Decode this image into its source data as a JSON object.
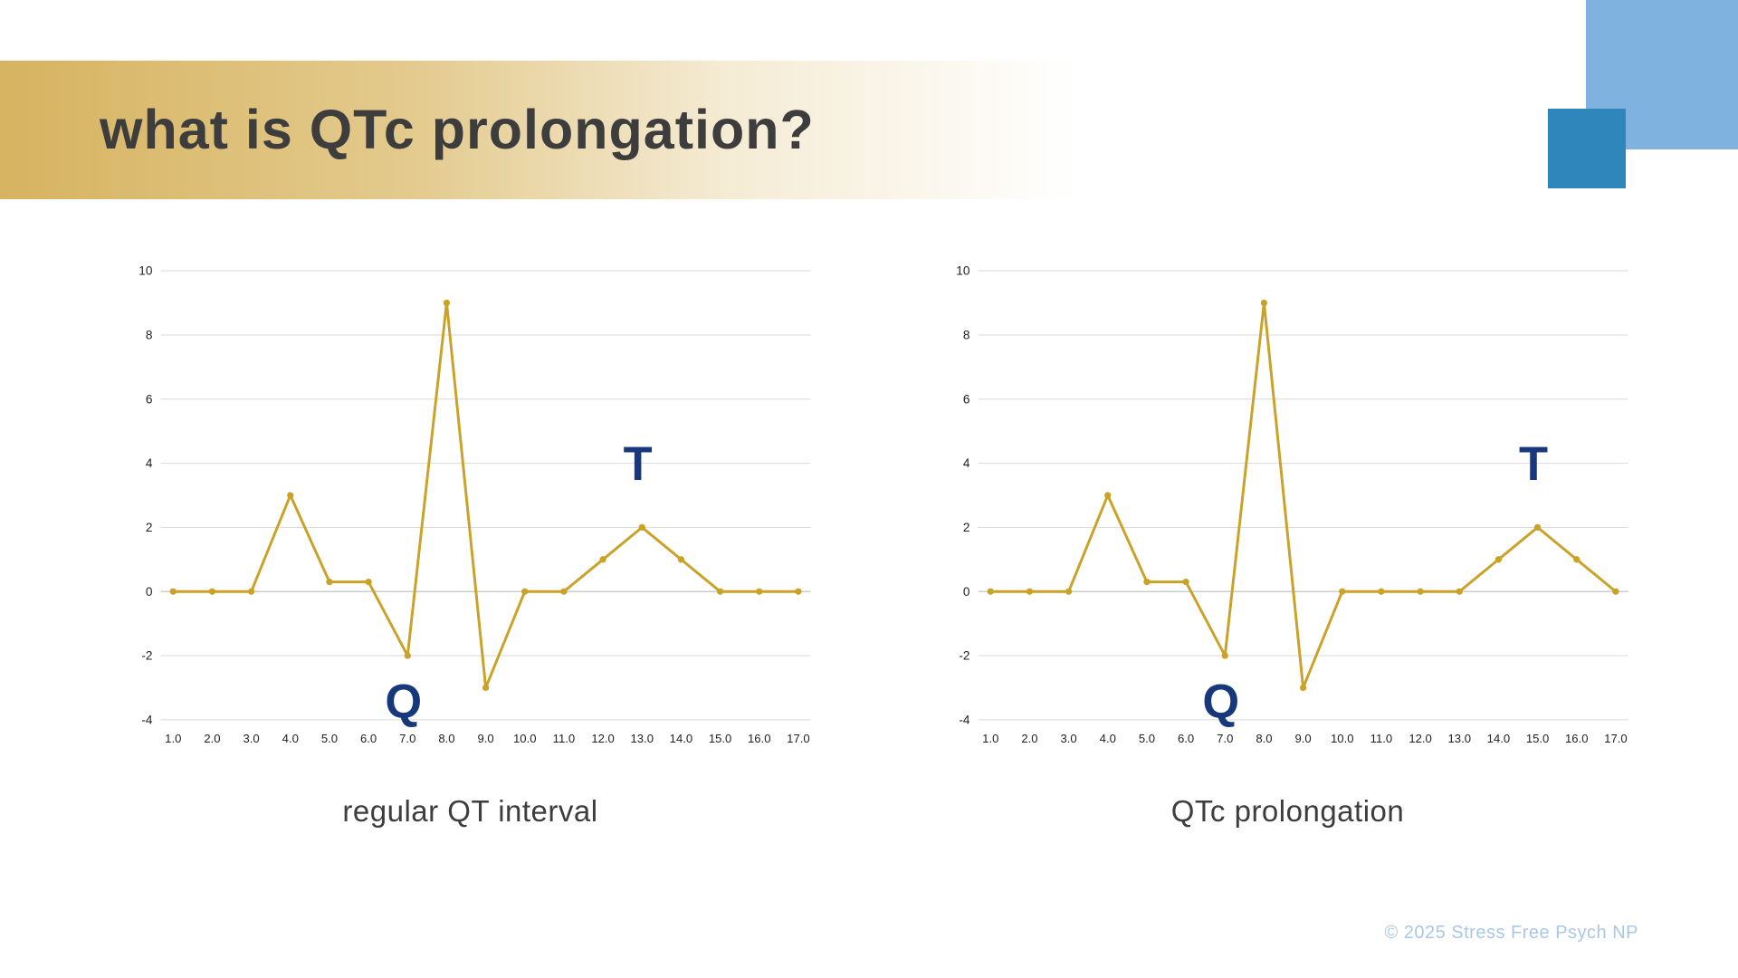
{
  "slide": {
    "title": "what is QTc prolongation?",
    "copyright": "© 2025 Stress Free Psych NP"
  },
  "colors": {
    "header_gradient_start": "#d6b360",
    "header_gradient_end": "#ffffff",
    "square_light_blue": "#7fb2df",
    "square_dark_blue": "#2e86ba",
    "grid_line": "#dedede",
    "zero_line": "#bdbdbd",
    "tick_text": "#222222",
    "annotation_color": "#17397b",
    "caption_text": "#3d3d3d",
    "copyright_text": "#a9c7e9",
    "ecg_gold": "#c9a227"
  },
  "chart_data": [
    {
      "type": "line",
      "title": "regular QT interval",
      "x": [
        1,
        2,
        3,
        4,
        5,
        6,
        7,
        8,
        9,
        10,
        11,
        12,
        13,
        14,
        15,
        16,
        17
      ],
      "x_tick_labels": [
        "1.0",
        "2.0",
        "3.0",
        "4.0",
        "5.0",
        "6.0",
        "7.0",
        "8.0",
        "9.0",
        "10.0",
        "11.0",
        "12.0",
        "13.0",
        "14.0",
        "15.0",
        "16.0",
        "17.0"
      ],
      "values": [
        0,
        0,
        0,
        3,
        0.3,
        0.3,
        -2,
        9,
        -3,
        0,
        0,
        1,
        2,
        1,
        0,
        0,
        0
      ],
      "ylim": [
        -4,
        10
      ],
      "yticks": [
        -4,
        -2,
        0,
        2,
        4,
        6,
        8,
        10
      ],
      "grid": true,
      "legend": "none",
      "line_color": "#c9a227",
      "annotations": [
        {
          "label": "Q",
          "x": 7,
          "y": -2,
          "position": "below"
        },
        {
          "label": "T",
          "x": 13,
          "y": 2,
          "position": "above"
        }
      ]
    },
    {
      "type": "line",
      "title": "QTc prolongation",
      "x": [
        1,
        2,
        3,
        4,
        5,
        6,
        7,
        8,
        9,
        10,
        11,
        12,
        13,
        14,
        15,
        16,
        17
      ],
      "x_tick_labels": [
        "1.0",
        "2.0",
        "3.0",
        "4.0",
        "5.0",
        "6.0",
        "7.0",
        "8.0",
        "9.0",
        "10.0",
        "11.0",
        "12.0",
        "13.0",
        "14.0",
        "15.0",
        "16.0",
        "17.0"
      ],
      "values": [
        0,
        0,
        0,
        3,
        0.3,
        0.3,
        -2,
        9,
        -3,
        0,
        0,
        0,
        0,
        1,
        2,
        1,
        0
      ],
      "ylim": [
        -4,
        10
      ],
      "yticks": [
        -4,
        -2,
        0,
        2,
        4,
        6,
        8,
        10
      ],
      "grid": true,
      "legend": "none",
      "line_color": "#c9a227",
      "annotations": [
        {
          "label": "Q",
          "x": 7,
          "y": -2,
          "position": "below"
        },
        {
          "label": "T",
          "x": 15,
          "y": 2,
          "position": "above"
        }
      ]
    }
  ]
}
